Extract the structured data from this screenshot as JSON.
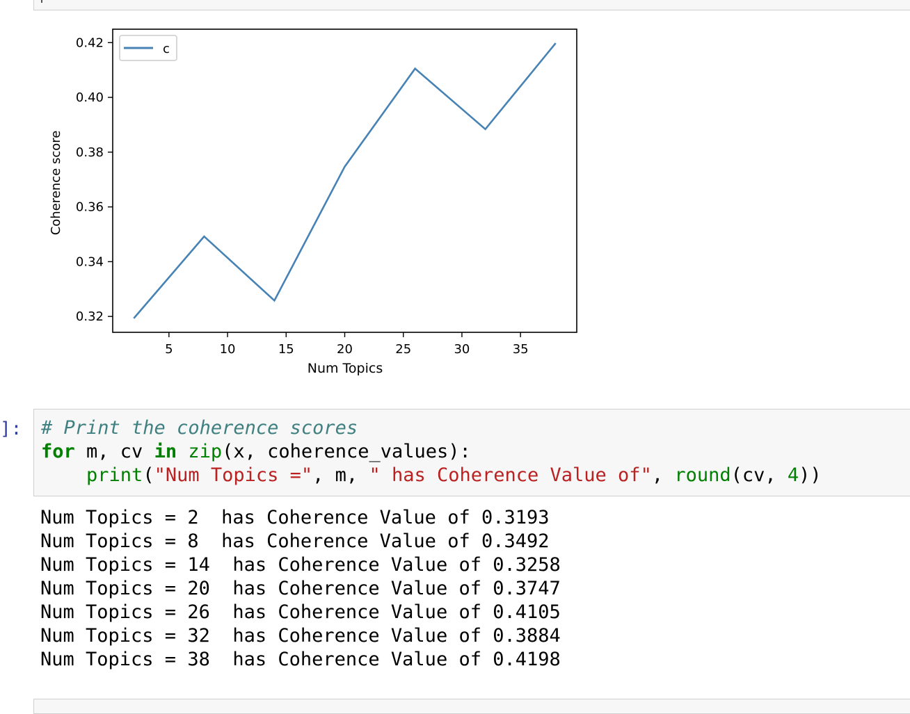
{
  "chart_data": {
    "type": "line",
    "x": [
      2,
      8,
      14,
      20,
      26,
      32,
      38
    ],
    "series": [
      {
        "name": "c",
        "values": [
          0.3193,
          0.3492,
          0.3258,
          0.3747,
          0.4105,
          0.3884,
          0.4198
        ],
        "color": "#4682b4"
      }
    ],
    "xlabel": "Num Topics",
    "ylabel": "Coherence score",
    "xlim": [
      0.2,
      39.8
    ],
    "ylim": [
      0.3142,
      0.4249
    ],
    "xticks": [
      5,
      10,
      15,
      20,
      25,
      30,
      35
    ],
    "yticks": [
      0.32,
      0.34,
      0.36,
      0.38,
      0.4,
      0.42
    ],
    "ytick_labels": [
      "0.32",
      "0.34",
      "0.36",
      "0.38",
      "0.40",
      "0.42"
    ],
    "legend": "top-left",
    "grid": false
  },
  "cell": {
    "prompt": "]:",
    "code": {
      "comment": "# Print the coherence scores",
      "kw_for": "for",
      "for_vars": " m, cv ",
      "kw_in": "in",
      "bi_zip": "zip",
      "zip_args": "(x, coherence_values):",
      "indent": "    ",
      "bi_print": "print",
      "paren_open": "(",
      "str1": "\"Num Topics =\"",
      "mid": ", m, ",
      "str2": "\" has Coherence Value of\"",
      "comma": ", ",
      "bi_round": "round",
      "round_args": "(cv, ",
      "num4": "4",
      "close": "))"
    }
  },
  "output_lines": [
    "Num Topics = 2  has Coherence Value of 0.3193",
    "Num Topics = 8  has Coherence Value of 0.3492",
    "Num Topics = 14  has Coherence Value of 0.3258",
    "Num Topics = 20  has Coherence Value of 0.3747",
    "Num Topics = 26  has Coherence Value of 0.4105",
    "Num Topics = 32  has Coherence Value of 0.3884",
    "Num Topics = 38  has Coherence Value of 0.4198"
  ]
}
